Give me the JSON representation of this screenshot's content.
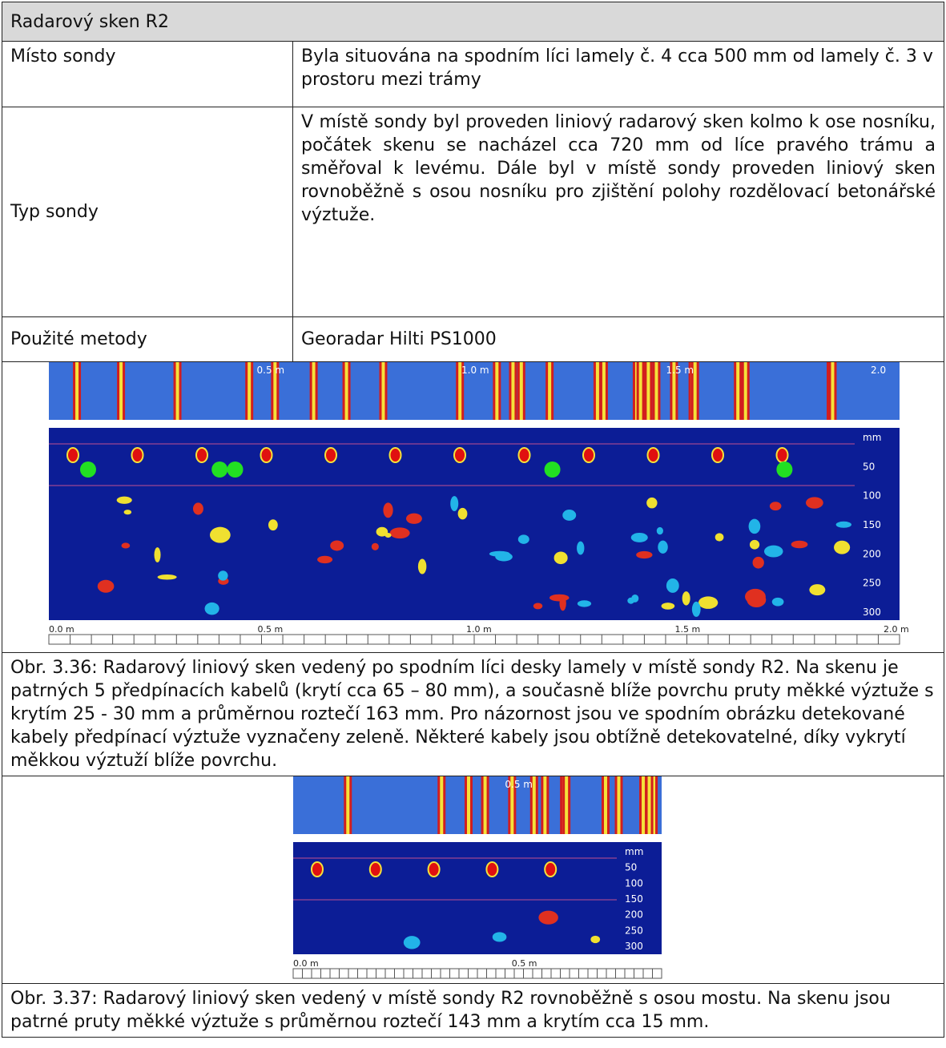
{
  "header": {
    "title": "Radarový sken R2"
  },
  "table": {
    "rows": [
      [
        "Místo sondy",
        "Byla situována na spodním líci lamely č. 4 cca 500 mm od lamely č. 3 v prostoru mezi trámy"
      ],
      [
        "Typ sondy",
        "V místě sondy byl proveden liniový radarový sken kolmo k ose nosníku, počátek skenu se nacházel cca 720 mm od líce pravého trámu a směřoval k levému. Dále byl v místě sondy proveden liniový sken rovnoběžně s osou nosníku pro zjištění polohy rozdělovací betonářské výztuže."
      ],
      [
        "Použité metody",
        "Georadar Hilti PS1000"
      ]
    ]
  },
  "figures": [
    {
      "top_labels": [
        "0.5 m",
        "1.0 m",
        "1.5 m",
        "2.0"
      ],
      "depth_labels": [
        "mm",
        "50",
        "100",
        "150",
        "200",
        "250",
        "300"
      ],
      "ruler_labels": [
        "0.0 m",
        "0.5 m",
        "1.0 m",
        "1.5 m",
        "2.0 m"
      ],
      "caption": "Obr. 3.36: Radarový liniový sken vedený po spodním líci desky lamely v místě sondy R2. Na skenu je patrných 5 předpínacích kabelů (krytí cca 65 – 80 mm), a současně blíže povrchu pruty měkké výztuže s krytím 25 - 30 mm a průměrnou roztečí 163 mm. Pro názornost jsou ve spodním obrázku detekované kabely předpínací výztuže vyznačeny zeleně. Některé kabely jsou obtížně detekovatelné, díky vykrytí měkkou výztuží blíže povrchu."
    },
    {
      "top_labels": [
        "0.5 m"
      ],
      "depth_labels": [
        "mm",
        "50",
        "100",
        "150",
        "200",
        "250",
        "300"
      ],
      "ruler_labels": [
        "0.0 m",
        "0.5 m"
      ],
      "caption": "Obr. 3.37: Radarový liniový sken vedený v místě sondy R2 rovnoběžně s osou mostu. Na skenu jsou patrné pruty měkké výztuže s průměrnou roztečí 143 mm a krytím cca 15 mm."
    }
  ]
}
